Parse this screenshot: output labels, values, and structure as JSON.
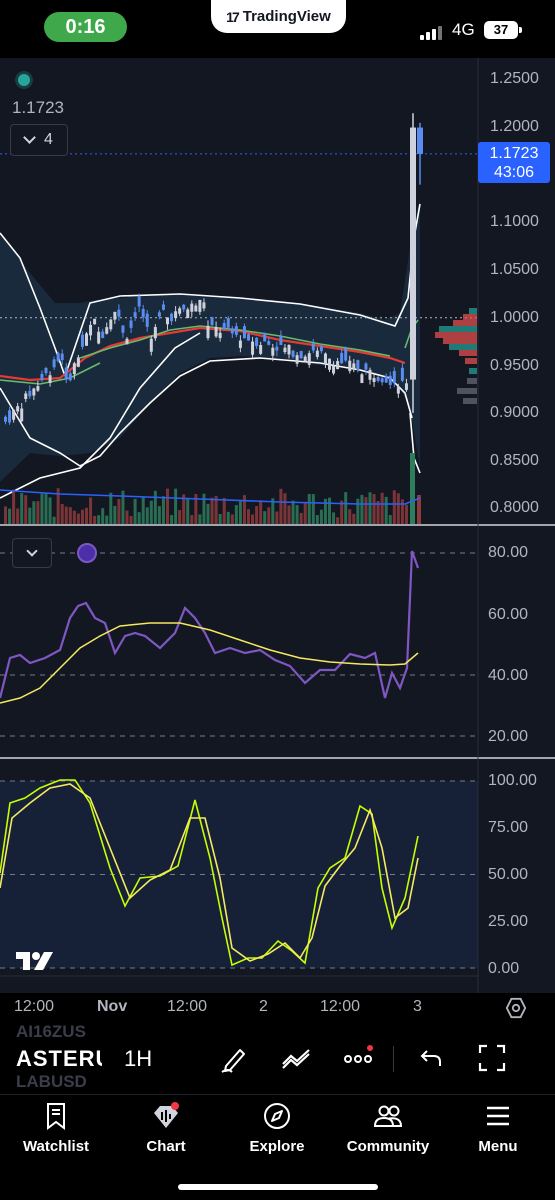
{
  "status_bar": {
    "time": "0:16",
    "brand": "TradingView",
    "brand_logo": "17",
    "network": "4G",
    "battery": "37"
  },
  "chart": {
    "last_price": "1.1723",
    "indicator_count": "4",
    "price_label": {
      "price": "1.1723",
      "countdown": "43:06"
    },
    "price_axis": [
      "1.2500",
      "1.2000",
      "1.1000",
      "1.0500",
      "1.0000",
      "0.9500",
      "0.9000",
      "0.8500",
      "0.8000"
    ],
    "rsi_axis": [
      "80.00",
      "60.00",
      "40.00",
      "20.00"
    ],
    "stoch_axis": [
      "100.00",
      "75.00",
      "50.00",
      "25.00",
      "0.00"
    ],
    "time_axis": [
      "12:00",
      "Nov",
      "12:00",
      "2",
      "12:00",
      "3"
    ],
    "watermark": "17"
  },
  "toolbar": {
    "symbol": "ASTERU",
    "ghost_above": "AI16ZUS",
    "ghost_below": "LABUSD",
    "interval": "1H"
  },
  "nav": {
    "items": [
      {
        "label": "Watchlist",
        "icon": "bookmark-icon"
      },
      {
        "label": "Chart",
        "icon": "chart-icon"
      },
      {
        "label": "Explore",
        "icon": "compass-icon"
      },
      {
        "label": "Community",
        "icon": "people-icon"
      },
      {
        "label": "Menu",
        "icon": "menu-icon"
      }
    ]
  },
  "colors": {
    "background": "#131722",
    "accent": "#2962ff",
    "up": "#5b8def",
    "down": "#cfd2dc",
    "rsi": "#7e57c2",
    "rsi_ma": "#f5e960",
    "stoch_k": "#c6ff00",
    "stoch_d": "#f5e960",
    "ema_red": "#e53935",
    "ema_green": "#66bb6a",
    "bollinger": "#ffffff",
    "live_pill": "#3fa84a"
  }
}
